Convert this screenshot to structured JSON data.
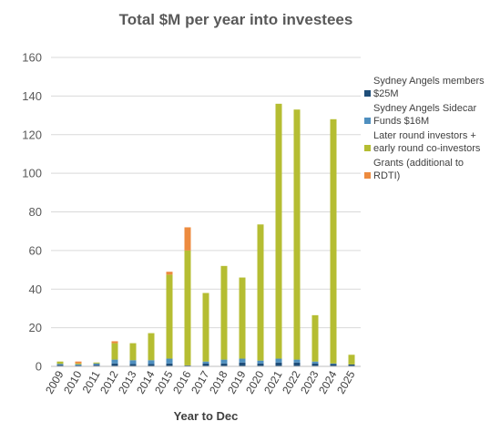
{
  "chart_data": {
    "type": "bar",
    "stacked": true,
    "title": "Total $M per year into investees",
    "xlabel": "Year to Dec",
    "ylabel": "",
    "ylim": [
      0,
      160
    ],
    "yticks": [
      0,
      20,
      40,
      60,
      80,
      100,
      120,
      140,
      160
    ],
    "grid": true,
    "legend_position": "right",
    "categories": [
      "2009",
      "2010",
      "2011",
      "2012",
      "2013",
      "2014",
      "2015",
      "2016",
      "2017",
      "2018",
      "2019",
      "2020",
      "2021",
      "2022",
      "2023",
      "2024",
      "2025"
    ],
    "series": [
      {
        "name": "Sydney Angels members $25M",
        "color": "#1f4e79",
        "values": [
          0.8,
          0.5,
          0.8,
          1.5,
          1.2,
          1.2,
          1.5,
          0.5,
          1.5,
          1.5,
          2,
          1.5,
          2,
          2,
          1.5,
          1.2,
          1
        ]
      },
      {
        "name": "Sydney Angels Sidecar Funds $16M",
        "color": "#4f8fbf",
        "values": [
          0.5,
          0.5,
          0.7,
          2,
          2,
          2,
          2.5,
          0,
          1,
          2,
          2,
          1.5,
          2,
          1.5,
          1,
          0.3,
          0
        ]
      },
      {
        "name": "Later round investors + early round co-investors",
        "color": "#b5bd32",
        "values": [
          1.2,
          0.5,
          0.5,
          8.5,
          8.8,
          14,
          43.5,
          59.5,
          35.5,
          48.5,
          42,
          70.5,
          132,
          129.5,
          24,
          126.5,
          5
        ]
      },
      {
        "name": "Grants (additional to RDTI)",
        "color": "#ed8b3f",
        "values": [
          0,
          1,
          0,
          1,
          0,
          0,
          1.5,
          12,
          0,
          0,
          0,
          0,
          0,
          0,
          0,
          0,
          0
        ]
      }
    ]
  }
}
